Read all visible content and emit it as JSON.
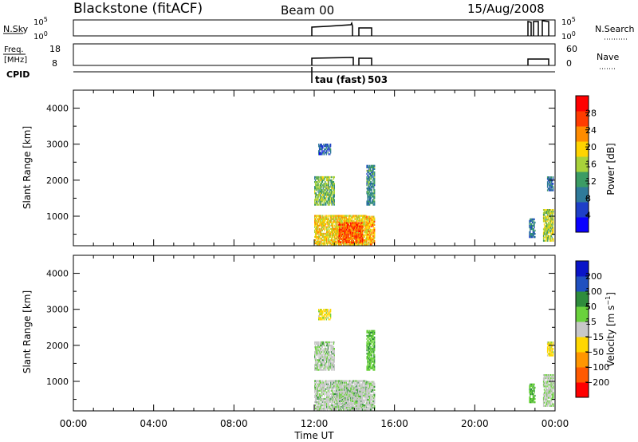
{
  "header": {
    "station": "Blackstone (fitACF)",
    "beam": "Beam 00",
    "date": "15/Aug/2008",
    "cpid_prefix": "tau (fast)",
    "cpid_value": "503"
  },
  "aux_panels": {
    "nsky": {
      "label": "N.Sky",
      "ticks_left": [
        "10^5",
        "10^0"
      ]
    },
    "freq": {
      "label_1": "Freq.",
      "label_2": "[MHz]",
      "ticks_left": [
        "18",
        "8"
      ],
      "ticks_right": [
        "60",
        "0"
      ]
    },
    "nsearch": {
      "label": "N.Search",
      "ticks_right": [
        "10^5",
        "10^0"
      ]
    },
    "nave": {
      "label": "Nave"
    },
    "cpid": {
      "label": "CPID"
    }
  },
  "colors": {
    "power_scale": [
      "#0a00ff",
      "#1e3fc8",
      "#2f7a9a",
      "#3c9c64",
      "#a8d23a",
      "#ffd400",
      "#ff8c00",
      "#ff3c00",
      "#ff0000"
    ],
    "velocity_scale": [
      "#ff0000",
      "#ff5a00",
      "#ff9600",
      "#ffd700",
      "#c8c8c8",
      "#6ad23c",
      "#2f8c3c",
      "#2050c0",
      "#0a14c8"
    ]
  },
  "chart_data": [
    {
      "type": "heatmap",
      "panel": "power",
      "ylabel": "Slant Range [km]",
      "ylim": [
        180,
        4500
      ],
      "y_ticks": [
        "1000",
        "2000",
        "3000",
        "4000"
      ],
      "x_ticks": [
        "00:00",
        "04:00",
        "08:00",
        "12:00",
        "16:00",
        "20:00",
        "00:00"
      ],
      "xlim_hours": [
        0,
        24
      ],
      "colorbar_label": "Power [dB]",
      "colorbar_ticks": [
        "4",
        "8",
        "12",
        "16",
        "20",
        "24",
        "28"
      ],
      "colorbar_range": [
        0,
        32
      ],
      "regions": [
        {
          "t0": 12.0,
          "t1": 14.6,
          "r0": 180,
          "r1": 1000,
          "level": 20
        },
        {
          "t0": 12.0,
          "t1": 13.0,
          "r0": 1300,
          "r1": 2100,
          "level": 14
        },
        {
          "t0": 12.2,
          "t1": 12.8,
          "r0": 2700,
          "r1": 3000,
          "level": 6
        },
        {
          "t0": 13.2,
          "t1": 14.4,
          "r0": 250,
          "r1": 800,
          "level": 27
        },
        {
          "t0": 14.6,
          "t1": 15.0,
          "r0": 200,
          "r1": 1000,
          "level": 22
        },
        {
          "t0": 14.6,
          "t1": 15.0,
          "r0": 1300,
          "r1": 2400,
          "level": 10
        },
        {
          "t0": 22.7,
          "t1": 23.0,
          "r0": 400,
          "r1": 900,
          "level": 8
        },
        {
          "t0": 23.4,
          "t1": 23.9,
          "r0": 300,
          "r1": 1200,
          "level": 16
        },
        {
          "t0": 23.6,
          "t1": 23.9,
          "r0": 1700,
          "r1": 2100,
          "level": 8
        }
      ]
    },
    {
      "type": "heatmap",
      "panel": "velocity",
      "ylabel": "Slant Range [km]",
      "ylim": [
        180,
        4500
      ],
      "y_ticks": [
        "1000",
        "2000",
        "3000",
        "4000"
      ],
      "x_ticks": [
        "00:00",
        "04:00",
        "08:00",
        "12:00",
        "16:00",
        "20:00",
        "00:00"
      ],
      "xlim_hours": [
        0,
        24
      ],
      "xlabel": "Time UT",
      "colorbar_label": "Velocity [m s^-1]",
      "colorbar_ticks": [
        "200",
        "100",
        "50",
        "15",
        "−15",
        "−50",
        "−100",
        "−200"
      ],
      "regions": [
        {
          "t0": 12.0,
          "t1": 14.6,
          "r0": 180,
          "r1": 1000,
          "level": 0
        },
        {
          "t0": 12.0,
          "t1": 13.0,
          "r0": 1300,
          "r1": 2100,
          "level": 0
        },
        {
          "t0": 12.2,
          "t1": 12.8,
          "r0": 2700,
          "r1": 3000,
          "level": -20
        },
        {
          "t0": 13.2,
          "t1": 14.4,
          "r0": 250,
          "r1": 800,
          "level": 0
        },
        {
          "t0": 14.6,
          "t1": 15.0,
          "r0": 200,
          "r1": 1000,
          "level": 0
        },
        {
          "t0": 14.6,
          "t1": 15.0,
          "r0": 1300,
          "r1": 2400,
          "level": 30
        },
        {
          "t0": 22.7,
          "t1": 23.0,
          "r0": 400,
          "r1": 900,
          "level": 20
        },
        {
          "t0": 23.4,
          "t1": 23.9,
          "r0": 300,
          "r1": 1200,
          "level": -10
        },
        {
          "t0": 23.6,
          "t1": 23.9,
          "r0": 1700,
          "r1": 2100,
          "level": -30
        }
      ]
    }
  ]
}
